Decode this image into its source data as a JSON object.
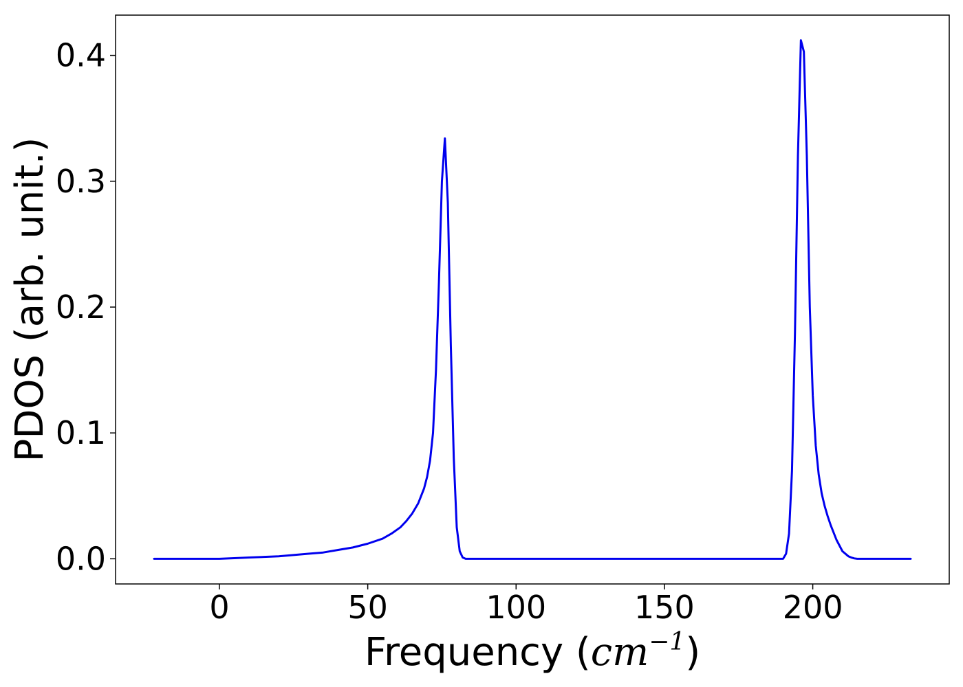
{
  "chart_data": {
    "type": "line",
    "title": "",
    "xlabel_prefix": "Frequency (",
    "xlabel_unit_base": "cm",
    "xlabel_unit_exp": "−1",
    "xlabel_suffix": ")",
    "ylabel": "PDOS (arb. unit.)",
    "xlim": [
      -35,
      246
    ],
    "ylim": [
      -0.02,
      0.432
    ],
    "xticks": [
      0,
      50,
      100,
      150,
      200
    ],
    "xtick_labels": [
      "0",
      "50",
      "100",
      "150",
      "200"
    ],
    "yticks": [
      0.0,
      0.1,
      0.2,
      0.3,
      0.4
    ],
    "ytick_labels": [
      "0.0",
      "0.1",
      "0.2",
      "0.3",
      "0.4"
    ],
    "grid": false,
    "series": [
      {
        "color": "#0000ee",
        "x": [
          -22,
          0,
          5,
          10,
          15,
          20,
          25,
          30,
          35,
          40,
          45,
          50,
          55,
          58,
          61,
          63,
          65,
          67,
          68,
          69,
          70,
          71,
          72,
          73,
          74,
          75,
          76,
          77,
          78,
          79,
          80,
          81,
          82,
          83,
          84,
          85,
          86,
          90,
          100,
          150,
          188,
          190,
          191,
          192,
          193,
          194,
          195,
          196,
          197,
          198,
          199,
          200,
          201,
          202,
          203,
          204,
          205,
          206,
          208,
          210,
          212,
          213,
          214,
          215,
          216,
          218,
          220,
          233
        ],
        "y": [
          0.0,
          0.0,
          0.0005,
          0.001,
          0.0015,
          0.002,
          0.003,
          0.004,
          0.005,
          0.007,
          0.009,
          0.012,
          0.016,
          0.02,
          0.025,
          0.03,
          0.036,
          0.044,
          0.05,
          0.056,
          0.065,
          0.078,
          0.1,
          0.15,
          0.22,
          0.3,
          0.334,
          0.283,
          0.17,
          0.08,
          0.025,
          0.006,
          0.001,
          0.0,
          0.0,
          0.0,
          0.0,
          0.0,
          0.0,
          0.0,
          0.0,
          0.0,
          0.004,
          0.02,
          0.07,
          0.18,
          0.32,
          0.412,
          0.403,
          0.32,
          0.2,
          0.13,
          0.09,
          0.067,
          0.052,
          0.042,
          0.034,
          0.027,
          0.015,
          0.006,
          0.002,
          0.001,
          0.0003,
          0.0,
          0.0,
          0.0,
          0.0,
          0.0
        ]
      }
    ]
  }
}
